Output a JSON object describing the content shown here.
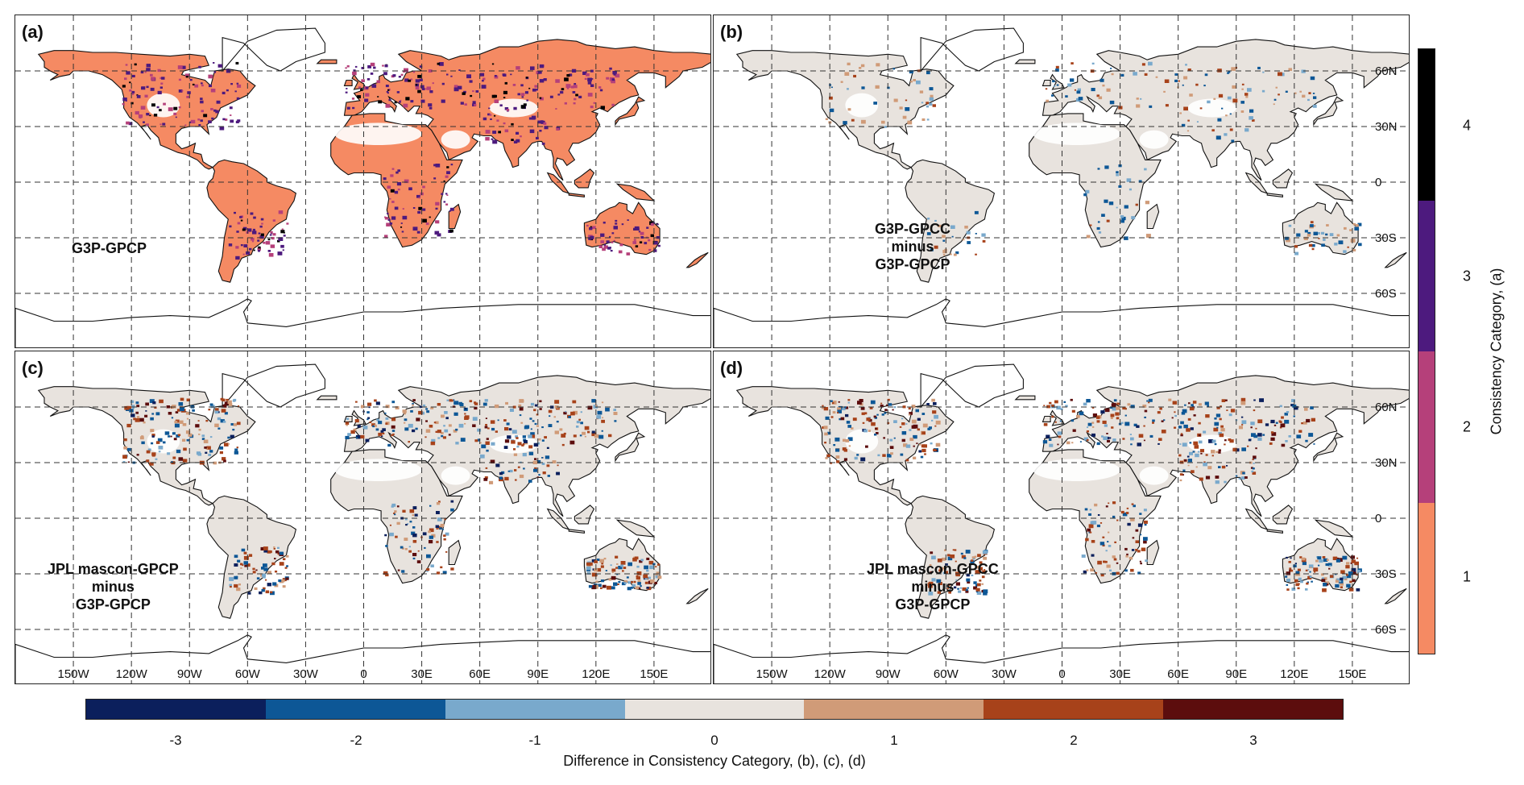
{
  "panels": [
    {
      "id": "a",
      "label": "(a)",
      "name_lines": [
        "G3P-GPCP"
      ],
      "mode": "category"
    },
    {
      "id": "b",
      "label": "(b)",
      "name_lines": [
        "G3P-GPCC",
        "minus",
        "G3P-GPCP"
      ],
      "mode": "diff_light"
    },
    {
      "id": "c",
      "label": "(c)",
      "name_lines": [
        "JPL mascon-GPCP",
        "minus",
        "G3P-GPCP"
      ],
      "mode": "diff"
    },
    {
      "id": "d",
      "label": "(d)",
      "name_lines": [
        "JPL mascon-GPCC",
        "minus",
        "G3P-GPCP"
      ],
      "mode": "diff"
    }
  ],
  "lat_labels": [
    "60N",
    "30N",
    "0",
    "30S",
    "60S"
  ],
  "lon_labels": [
    "150W",
    "120W",
    "90W",
    "60W",
    "30W",
    "0",
    "30E",
    "60E",
    "90E",
    "120E",
    "150E"
  ],
  "diff_colorbar": {
    "label": "Difference in Consistency Category, (b), (c), (d)",
    "ticks": [
      "-3",
      "-2",
      "-1",
      "0",
      "1",
      "2",
      "3"
    ],
    "colors": [
      "#0b1f5c",
      "#0d5796",
      "#79a9cc",
      "#e8e3de",
      "#d09b78",
      "#a7421a",
      "#5c0d0d"
    ]
  },
  "category_colorbar": {
    "label": "Consistency Category, (a)",
    "ticks": [
      "1",
      "2",
      "3",
      "4"
    ],
    "colors": [
      "#f58a63",
      "#b5407a",
      "#4d1a7e",
      "#000000"
    ]
  }
}
